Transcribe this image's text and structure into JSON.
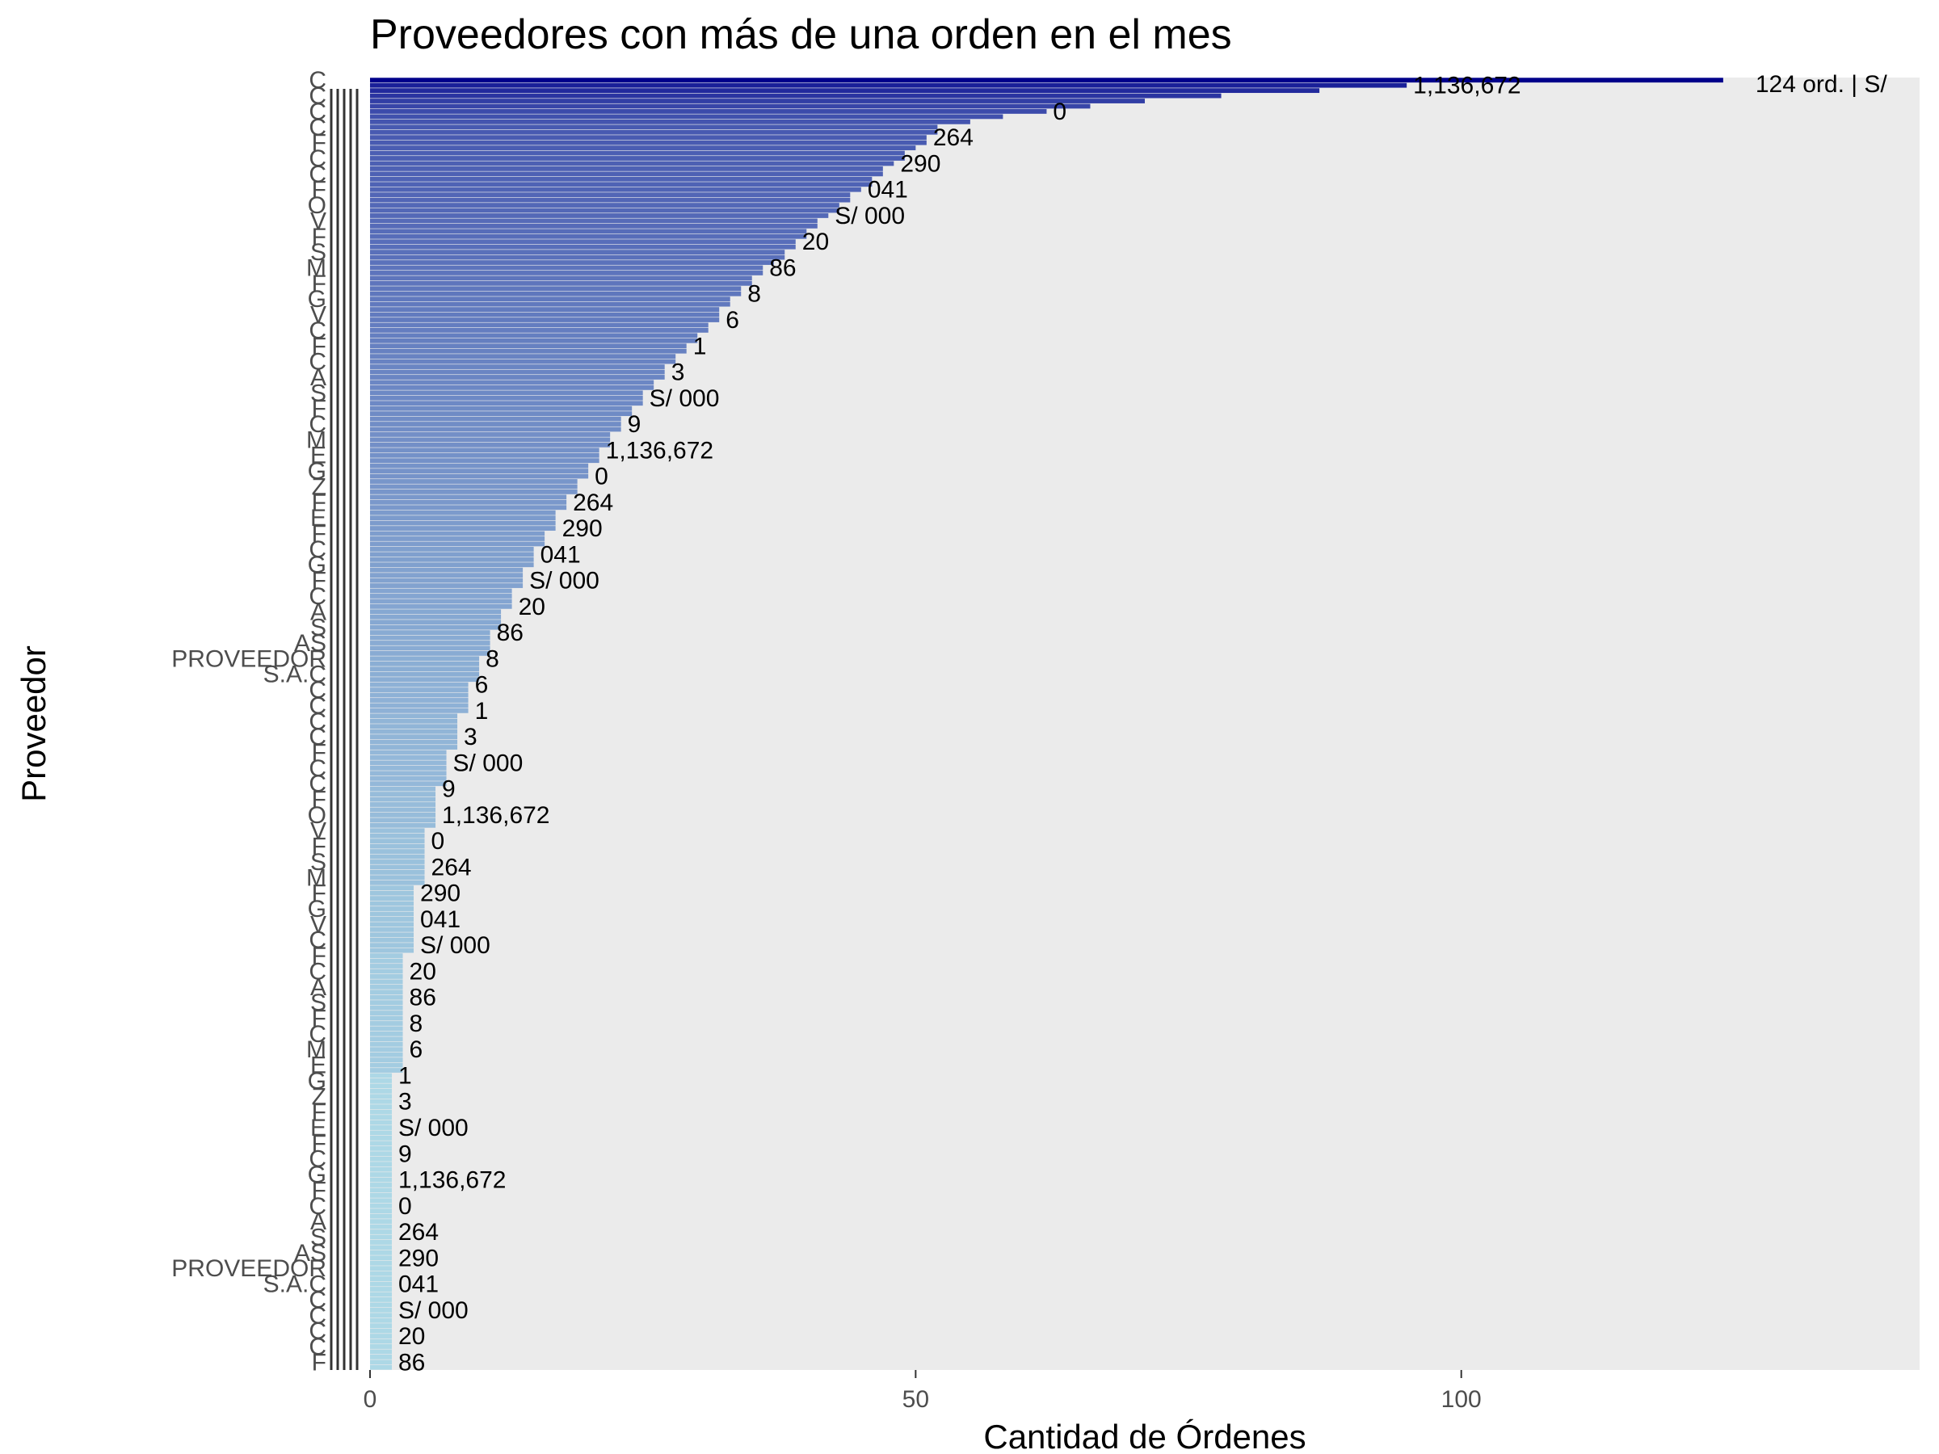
{
  "chart_data": {
    "type": "bar",
    "orientation": "horizontal",
    "title": "Proveedores con más de una orden en el mes",
    "xlabel": "Cantidad de Órdenes",
    "ylabel": "Proveedor",
    "xlim": [
      0,
      142
    ],
    "x_ticks": [
      "0",
      "50",
      "100"
    ],
    "x_tick_values": [
      0,
      50,
      100
    ],
    "grid": false,
    "panel_background": "#ebebeb",
    "legend": "none",
    "fill_gradient": {
      "low": "#add8e6",
      "high": "#00008b"
    },
    "n_bars": 248,
    "categories_visible_fragments": [
      "C",
      "C",
      "C",
      "C",
      "F",
      "C",
      "C",
      "F",
      "O",
      "V",
      "F",
      "S",
      "M",
      "F",
      "G",
      "V",
      "C",
      "F",
      "C",
      "A",
      "S",
      "F",
      "C",
      "M",
      "E",
      "G",
      "Z",
      "F",
      "E",
      "F",
      "C",
      "G",
      "F",
      "C",
      "A",
      "S",
      "AS",
      "PROVEEDOR",
      "S.A.C"
    ],
    "top_values": [
      124,
      95,
      87,
      78,
      71,
      66,
      62,
      58,
      55,
      52
    ],
    "visible_label_fragments": [
      "124 ord. | S/",
      "1,136,672",
      "0",
      "264",
      "290",
      "041",
      "S/ 000",
      "20",
      "86",
      "8",
      "6",
      "1",
      "3",
      "S/ 000",
      "9"
    ]
  }
}
